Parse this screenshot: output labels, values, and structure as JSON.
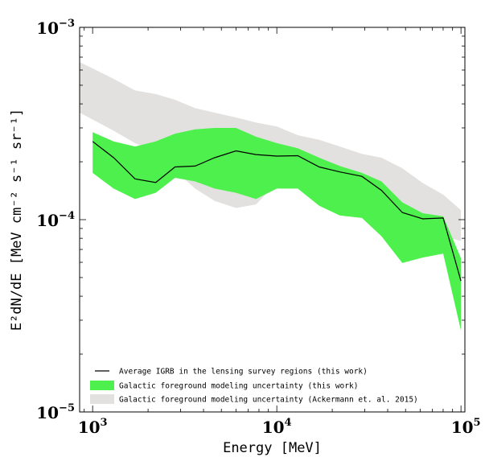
{
  "chart_data": {
    "type": "area",
    "xlabel": "Energy [MeV]",
    "ylabel": "E²dN/dE [MeV cm⁻² s⁻¹ sr⁻¹]",
    "xscale": "log",
    "yscale": "log",
    "xlim": [
      850,
      105000
    ],
    "ylim": [
      1e-05,
      0.001
    ],
    "x_ticks": [
      {
        "value": 1000,
        "base": "10",
        "exp": "3"
      },
      {
        "value": 10000,
        "base": "10",
        "exp": "4"
      },
      {
        "value": 100000,
        "base": "10",
        "exp": "5"
      }
    ],
    "y_ticks": [
      {
        "value": 1e-05,
        "base": "10",
        "exp": "−5"
      },
      {
        "value": 0.0001,
        "base": "10",
        "exp": "−4"
      },
      {
        "value": 0.001,
        "base": "10",
        "exp": "−3"
      }
    ],
    "legend_position": "bottom-left",
    "series": [
      {
        "name": "Galactic foreground modeling uncertainty (Ackermann et. al. 2015)",
        "kind": "band",
        "color": "#e2e1df",
        "x": [
          850,
          1300,
          1700,
          2200,
          2800,
          3600,
          4600,
          6000,
          7700,
          10000,
          13000,
          17000,
          22000,
          29000,
          37000,
          48000,
          62000,
          80000,
          100000
        ],
        "upper": [
          0.00066,
          0.00054,
          0.00047,
          0.00045,
          0.00042,
          0.00038,
          0.00036,
          0.00034,
          0.00032,
          0.000305,
          0.000275,
          0.00026,
          0.00024,
          0.00022,
          0.00021,
          0.000185,
          0.000155,
          0.000135,
          0.000112
        ],
        "lower": [
          0.00036,
          0.00029,
          0.00025,
          0.000225,
          0.00018,
          0.000145,
          0.000125,
          0.000115,
          0.00012,
          0.000155,
          0.000155,
          0.000135,
          0.00012,
          0.000115,
          0.000105,
          9.25e-05,
          8.55e-05,
          8.2e-05,
          7.75e-05
        ]
      },
      {
        "name": "Galactic foreground modeling uncertainty (this work)",
        "kind": "band",
        "color": "#4ef04e",
        "x": [
          1000,
          1300,
          1700,
          2200,
          2800,
          3600,
          4600,
          6000,
          7700,
          10000,
          13000,
          17000,
          22000,
          29000,
          37000,
          48000,
          62000,
          80000,
          100000
        ],
        "upper": [
          0.000285,
          0.000255,
          0.00024,
          0.000255,
          0.00028,
          0.000295,
          0.0003,
          0.0003,
          0.00027,
          0.00025,
          0.000235,
          0.00021,
          0.00019,
          0.000175,
          0.000158,
          0.000123,
          0.000108,
          0.000104,
          6.3e-05
        ],
        "lower": [
          0.000175,
          0.000145,
          0.000128,
          0.000138,
          0.000165,
          0.000158,
          0.000145,
          0.000138,
          0.000128,
          0.000145,
          0.000145,
          0.000118,
          0.000105,
          0.000102,
          8.2e-05,
          5.95e-05,
          6.35e-05,
          6.65e-05,
          2.65e-05
        ]
      },
      {
        "name": "Average IGRB in the lensing survey regions (this work)",
        "kind": "line",
        "color": "#000000",
        "x": [
          1000,
          1300,
          1700,
          2200,
          2800,
          3600,
          4600,
          6000,
          7700,
          10000,
          13000,
          17000,
          22000,
          29000,
          37000,
          48000,
          62000,
          80000,
          100000
        ],
        "y": [
          0.000255,
          0.00021,
          0.000163,
          0.000156,
          0.000188,
          0.00019,
          0.00021,
          0.000228,
          0.000218,
          0.000214,
          0.000215,
          0.000188,
          0.000177,
          0.000168,
          0.000142,
          0.000109,
          0.000101,
          0.000102,
          4.8e-05
        ]
      }
    ],
    "legend_order": [
      2,
      1,
      0
    ]
  }
}
